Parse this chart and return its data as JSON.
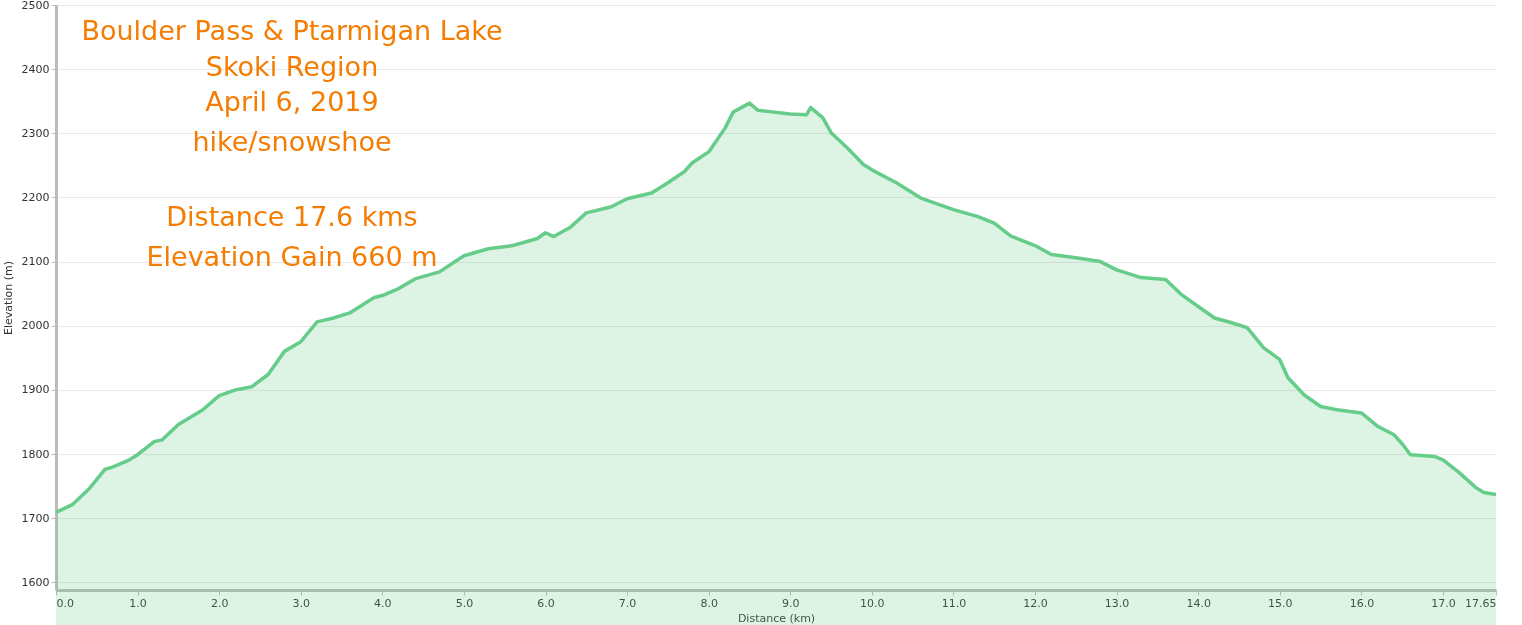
{
  "chart_data": {
    "type": "area",
    "title": "Boulder Pass & Ptarmigan Lake",
    "xlabel": "Distance   (km)",
    "ylabel": "Elevation (m)",
    "annotations": [
      "Skoki Region",
      "April 6, 2019",
      "hike/snowshoe",
      "Distance   17.6 kms",
      "Elevation Gain  660 m"
    ],
    "x": [
      0,
      0.2,
      0.4,
      0.6,
      0.7,
      0.9,
      1.0,
      1.2,
      1.3,
      1.5,
      1.8,
      2.0,
      2.2,
      2.4,
      2.6,
      2.8,
      3.0,
      3.2,
      3.4,
      3.6,
      3.9,
      4.0,
      4.2,
      4.4,
      4.7,
      5.0,
      5.3,
      5.6,
      5.9,
      6.0,
      6.1,
      6.3,
      6.5,
      6.8,
      7.0,
      7.3,
      7.5,
      7.7,
      7.8,
      8.0,
      8.2,
      8.3,
      8.5,
      8.6,
      8.8,
      9.0,
      9.2,
      9.25,
      9.4,
      9.5,
      9.7,
      9.9,
      10.0,
      10.3,
      10.6,
      11.0,
      11.3,
      11.5,
      11.7,
      12.0,
      12.2,
      12.5,
      12.8,
      13.0,
      13.3,
      13.6,
      13.8,
      14.0,
      14.2,
      14.4,
      14.6,
      14.8,
      15.0,
      15.1,
      15.3,
      15.5,
      15.7,
      16.0,
      16.2,
      16.4,
      16.5,
      16.6,
      16.9,
      17.0,
      17.2,
      17.4,
      17.5,
      17.65
    ],
    "series": [
      {
        "color": "#66cc8a",
        "values": [
          1709,
          1721,
          1745,
          1776,
          1780,
          1791,
          1799,
          1819,
          1822,
          1846,
          1869,
          1891,
          1900,
          1905,
          1924,
          1960,
          1975,
          2006,
          2012,
          2020,
          2044,
          2047,
          2058,
          2073,
          2084,
          2109,
          2120,
          2125,
          2136,
          2145,
          2139,
          2153,
          2176,
          2185,
          2198,
          2207,
          2223,
          2240,
          2254,
          2271,
          2308,
          2333,
          2347,
          2336,
          2333,
          2330,
          2329,
          2340,
          2324,
          2301,
          2277,
          2251,
          2243,
          2223,
          2199,
          2181,
          2170,
          2160,
          2140,
          2125,
          2111,
          2106,
          2100,
          2087,
          2075,
          2072,
          2048,
          2030,
          2012,
          2005,
          1997,
          1966,
          1947,
          1919,
          1892,
          1874,
          1869,
          1864,
          1843,
          1830,
          1816,
          1799,
          1796,
          1791,
          1771,
          1748,
          1740,
          1737
        ]
      }
    ],
    "xlim": [
      0,
      17.65
    ],
    "xticks": [
      {
        "value": 0,
        "label": "0.0"
      },
      {
        "value": 1,
        "label": "1.0"
      },
      {
        "value": 2,
        "label": "2.0"
      },
      {
        "value": 3,
        "label": "3.0"
      },
      {
        "value": 4,
        "label": "4.0"
      },
      {
        "value": 5,
        "label": "5.0"
      },
      {
        "value": 6,
        "label": "6.0"
      },
      {
        "value": 7,
        "label": "7.0"
      },
      {
        "value": 8,
        "label": "8.0"
      },
      {
        "value": 9,
        "label": "9.0"
      },
      {
        "value": 10,
        "label": "10.0"
      },
      {
        "value": 11,
        "label": "11.0"
      },
      {
        "value": 12,
        "label": "12.0"
      },
      {
        "value": 13,
        "label": "13.0"
      },
      {
        "value": 14,
        "label": "14.0"
      },
      {
        "value": 15,
        "label": "15.0"
      },
      {
        "value": 16,
        "label": "16.0"
      },
      {
        "value": 17,
        "label": "17.0"
      },
      17.65
    ],
    "ylim": [
      1588,
      2500
    ],
    "yticks": [
      1600,
      1700,
      1800,
      1900,
      2000,
      2100,
      2200,
      2300,
      2400,
      2500
    ],
    "grid": "y"
  }
}
